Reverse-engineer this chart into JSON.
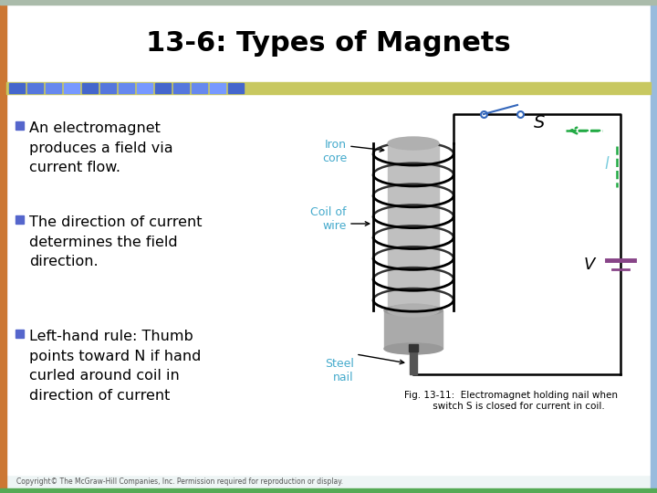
{
  "title": "13-6: Types of Magnets",
  "title_fontsize": 22,
  "title_color": "#000000",
  "background_color": "#ffffff",
  "bullet_square_color": "#5566cc",
  "bullet1": "An electromagnet\nproduces a field via\ncurrent flow.",
  "bullet2": "The direction of current\ndetermines the field\ndirection.",
  "bullet3": "Left-hand rule: Thumb\npoints toward N if hand\ncurled around coil in\ndirection of current",
  "fig_caption": "Fig. 13-11:  Electromagnet holding nail when\n     switch S is closed for current in coil.",
  "copyright": "Copyright© The McGraw-Hill Companies, Inc. Permission required for reproduction or display.",
  "label_iron_core": "Iron\ncore",
  "label_coil": "Coil of\nwire",
  "label_steel_nail": "Steel\nnail",
  "label_s": "S",
  "label_i": "l",
  "label_v": "V",
  "label_color": "#44aacc",
  "wire_color": "#000000",
  "switch_color": "#3366bb",
  "current_color": "#22aa44",
  "battery_color": "#884488",
  "border_left_color": "#cc7733",
  "border_right_color": "#99bbdd",
  "border_bottom_color": "#55aa55",
  "border_top_color": "#aabbaa",
  "header_bar_color": "#c8c860",
  "sq_colors": [
    "#4466cc",
    "#5577dd",
    "#6688ee",
    "#7799ff",
    "#4466cc",
    "#5577dd",
    "#6688ee",
    "#7799ff",
    "#4466cc",
    "#5577dd",
    "#6688ee",
    "#7799ff",
    "#4466cc"
  ],
  "content_bg": "#ffffff",
  "title_bg": "#ffffff"
}
